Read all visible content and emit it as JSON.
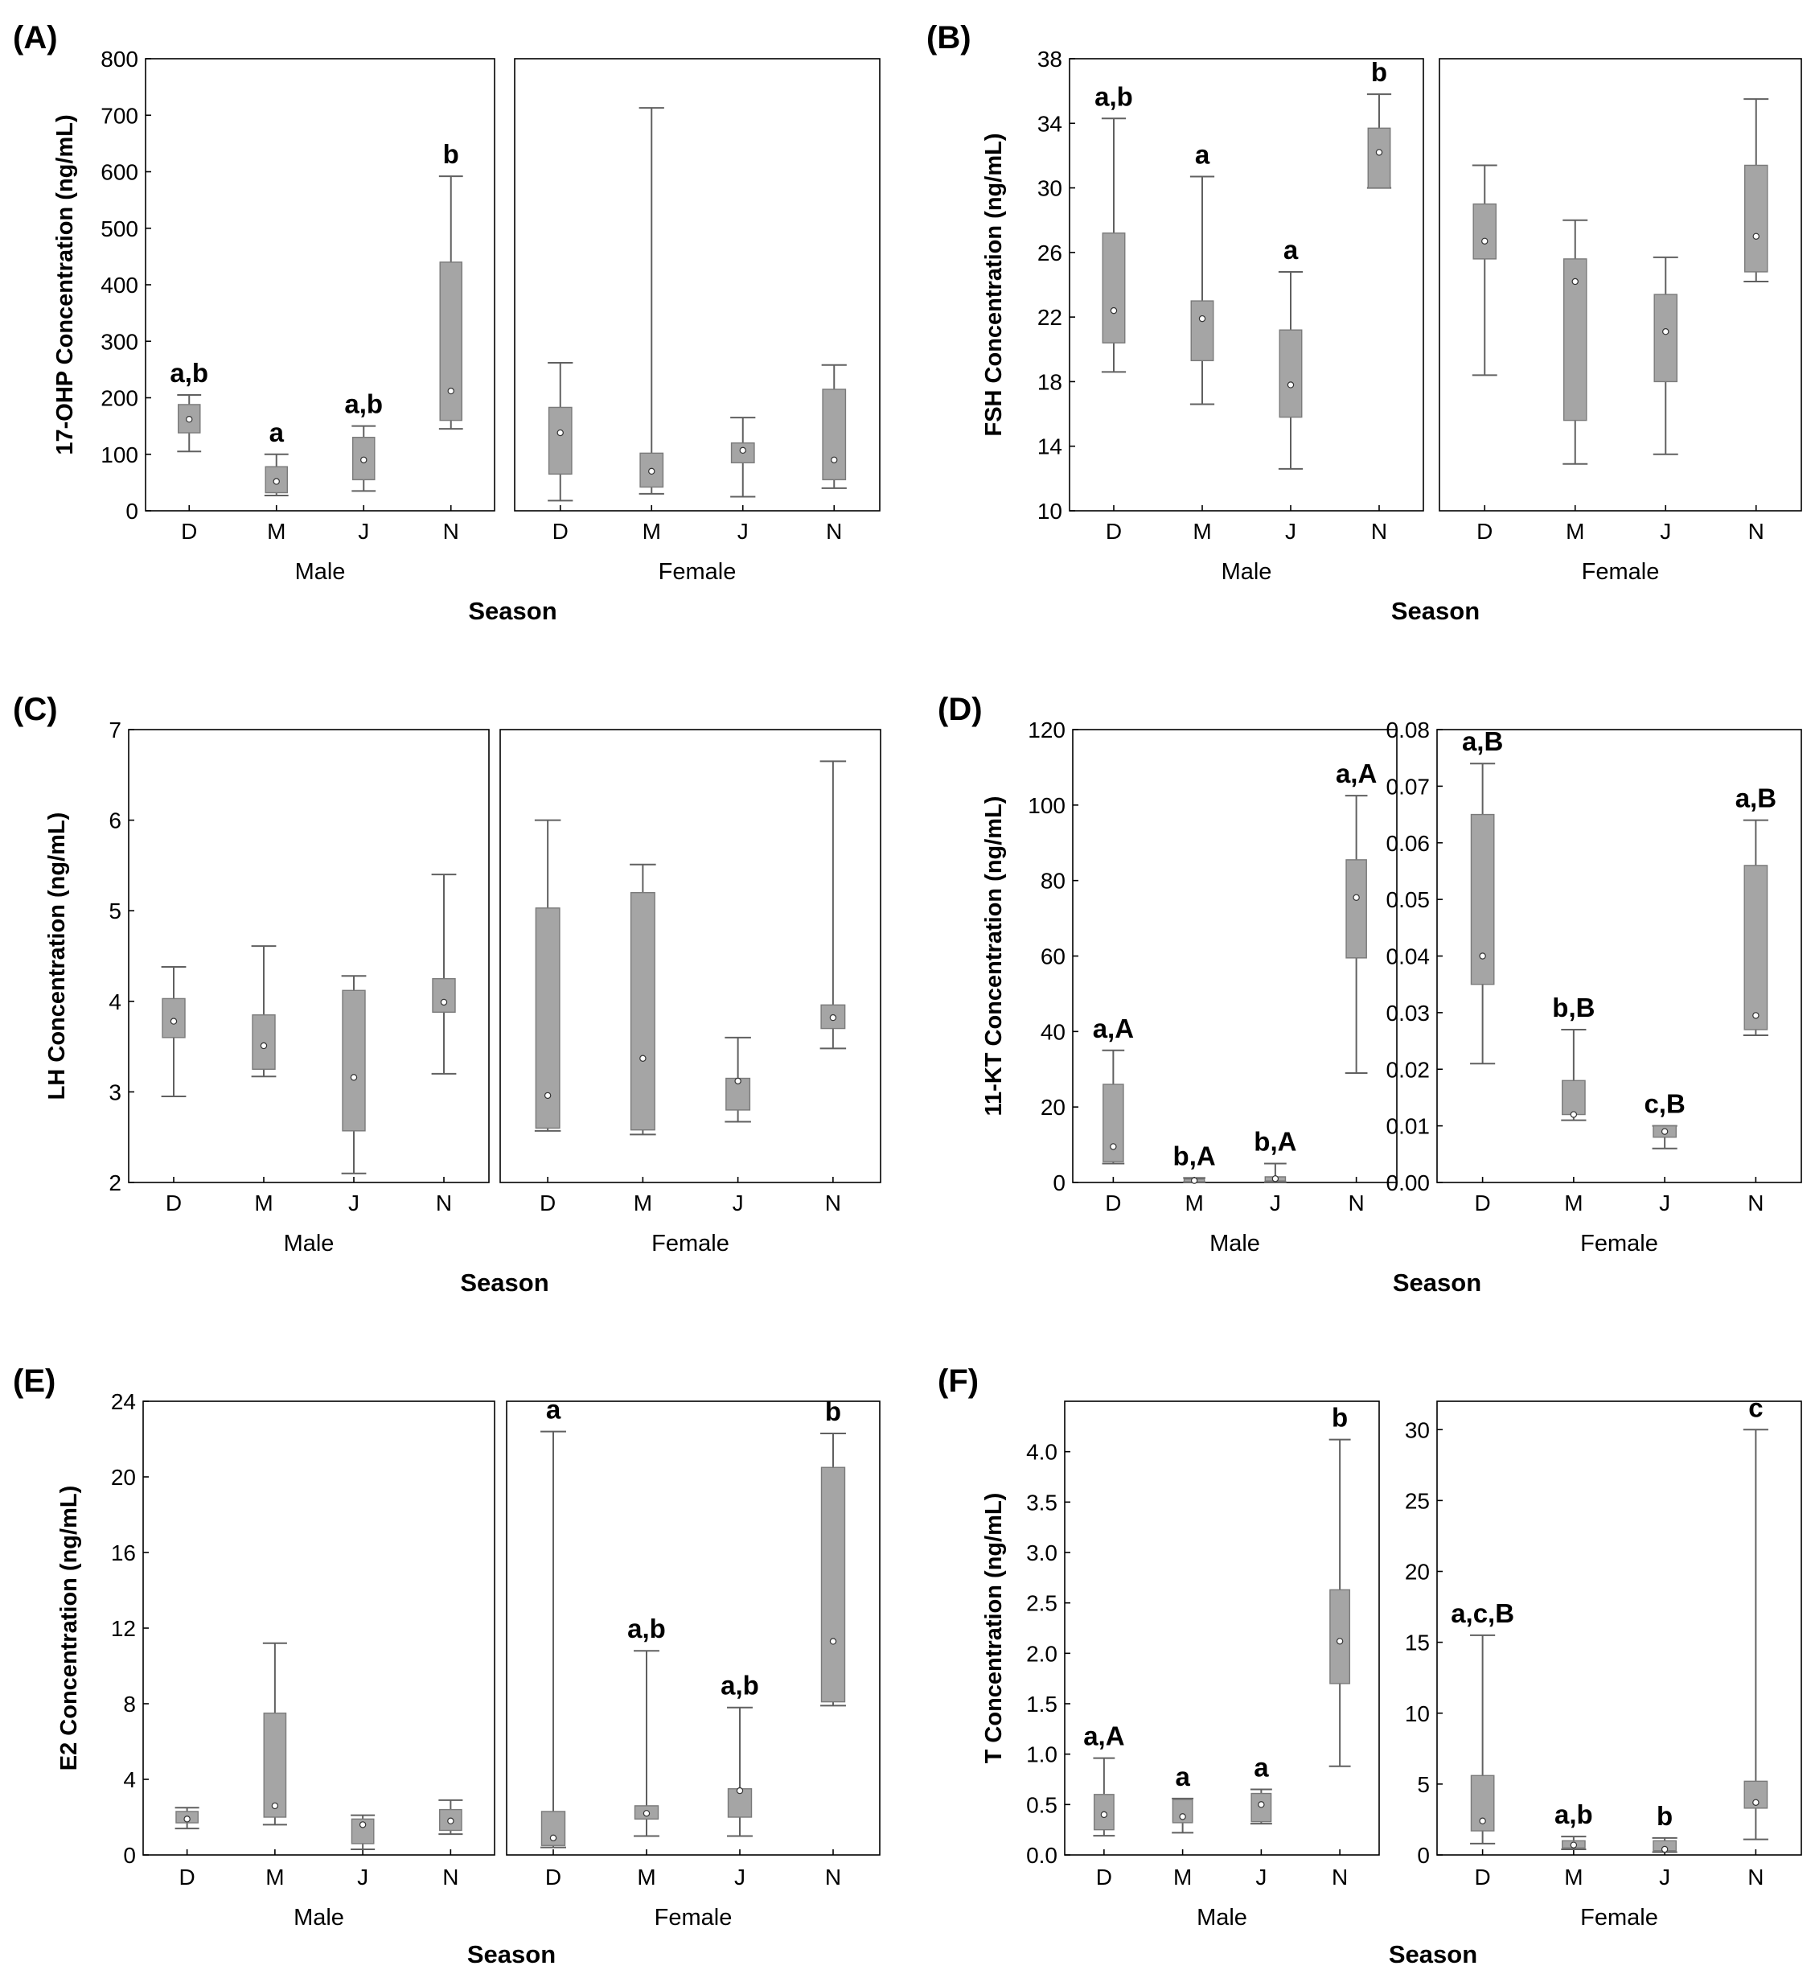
{
  "chart_data": [
    {
      "id": "A",
      "panel_label": "(A)",
      "type": "box",
      "ylabel": "17-OHP Concentration (ng/mL)",
      "xlabel": "Season",
      "categories": [
        "D",
        "M",
        "J",
        "N"
      ],
      "groups": [
        {
          "name": "Male",
          "ylim": [
            0,
            800
          ],
          "yticks": [
            "0",
            "100",
            "200",
            "300",
            "400",
            "500",
            "600",
            "700",
            "800"
          ],
          "tick_side": "left",
          "boxes": [
            {
              "category": "D",
              "min": 105,
              "q1": 138,
              "median": 162,
              "q3": 188,
              "max": 205,
              "label": "a,b"
            },
            {
              "category": "M",
              "min": 27,
              "q1": 32,
              "median": 52,
              "q3": 78,
              "max": 100,
              "label": "a"
            },
            {
              "category": "J",
              "min": 35,
              "q1": 55,
              "median": 90,
              "q3": 130,
              "max": 150,
              "label": "a,b"
            },
            {
              "category": "N",
              "min": 145,
              "q1": 160,
              "median": 212,
              "q3": 440,
              "max": 592,
              "label": "b"
            }
          ]
        },
        {
          "name": "Female",
          "ylim": [
            0,
            800
          ],
          "yticks": [],
          "tick_side": "none",
          "boxes": [
            {
              "category": "D",
              "min": 18,
              "q1": 65,
              "median": 138,
              "q3": 183,
              "max": 262,
              "label": ""
            },
            {
              "category": "M",
              "min": 30,
              "q1": 42,
              "median": 70,
              "q3": 102,
              "max": 713,
              "label": ""
            },
            {
              "category": "J",
              "min": 25,
              "q1": 85,
              "median": 107,
              "q3": 120,
              "max": 165,
              "label": ""
            },
            {
              "category": "N",
              "min": 40,
              "q1": 55,
              "median": 90,
              "q3": 215,
              "max": 258,
              "label": ""
            }
          ]
        }
      ]
    },
    {
      "id": "B",
      "panel_label": "(B)",
      "type": "box",
      "ylabel": "FSH Concentration (ng/mL)",
      "xlabel": "Season",
      "categories": [
        "D",
        "M",
        "J",
        "N"
      ],
      "groups": [
        {
          "name": "Male",
          "ylim": [
            10,
            38
          ],
          "yticks": [
            "10",
            "14",
            "18",
            "22",
            "26",
            "30",
            "34",
            "38"
          ],
          "tick_side": "left",
          "boxes": [
            {
              "category": "D",
              "min": 18.6,
              "q1": 20.4,
              "median": 22.4,
              "q3": 27.2,
              "max": 34.3,
              "label": "a,b"
            },
            {
              "category": "M",
              "min": 16.6,
              "q1": 19.3,
              "median": 21.9,
              "q3": 23.0,
              "max": 30.7,
              "label": "a"
            },
            {
              "category": "J",
              "min": 12.6,
              "q1": 15.8,
              "median": 17.8,
              "q3": 21.2,
              "max": 24.8,
              "label": "a"
            },
            {
              "category": "N",
              "min": 30.0,
              "q1": 30.0,
              "median": 32.2,
              "q3": 33.7,
              "max": 35.8,
              "label": "b"
            }
          ]
        },
        {
          "name": "Female",
          "ylim": [
            10,
            38
          ],
          "yticks": [],
          "tick_side": "none",
          "boxes": [
            {
              "category": "D",
              "min": 18.4,
              "q1": 25.6,
              "median": 26.7,
              "q3": 29.0,
              "max": 31.4,
              "label": ""
            },
            {
              "category": "M",
              "min": 12.9,
              "q1": 15.6,
              "median": 24.2,
              "q3": 25.6,
              "max": 28.0,
              "label": ""
            },
            {
              "category": "J",
              "min": 13.5,
              "q1": 18.0,
              "median": 21.1,
              "q3": 23.4,
              "max": 25.7,
              "label": ""
            },
            {
              "category": "N",
              "min": 24.2,
              "q1": 24.8,
              "median": 27.0,
              "q3": 31.4,
              "max": 35.5,
              "label": ""
            }
          ]
        }
      ]
    },
    {
      "id": "C",
      "panel_label": "(C)",
      "type": "box",
      "ylabel": "LH Concentration (ng/mL)",
      "xlabel": "Season",
      "categories": [
        "D",
        "M",
        "J",
        "N"
      ],
      "groups": [
        {
          "name": "Male",
          "ylim": [
            2,
            7
          ],
          "yticks": [
            "2",
            "3",
            "4",
            "5",
            "6",
            "7"
          ],
          "tick_side": "left",
          "boxes": [
            {
              "category": "D",
              "min": 2.95,
              "q1": 3.6,
              "median": 3.78,
              "q3": 4.03,
              "max": 4.38,
              "label": ""
            },
            {
              "category": "M",
              "min": 3.17,
              "q1": 3.25,
              "median": 3.51,
              "q3": 3.85,
              "max": 4.61,
              "label": ""
            },
            {
              "category": "J",
              "min": 2.1,
              "q1": 2.57,
              "median": 3.16,
              "q3": 4.12,
              "max": 4.28,
              "label": ""
            },
            {
              "category": "N",
              "min": 3.2,
              "q1": 3.88,
              "median": 3.99,
              "q3": 4.25,
              "max": 5.4,
              "label": ""
            }
          ]
        },
        {
          "name": "Female",
          "ylim": [
            2,
            7
          ],
          "yticks": [],
          "tick_side": "none",
          "boxes": [
            {
              "category": "D",
              "min": 2.57,
              "q1": 2.6,
              "median": 2.96,
              "q3": 5.03,
              "max": 6.0,
              "label": ""
            },
            {
              "category": "M",
              "min": 2.53,
              "q1": 2.58,
              "median": 3.37,
              "q3": 5.2,
              "max": 5.51,
              "label": ""
            },
            {
              "category": "J",
              "min": 2.67,
              "q1": 2.8,
              "median": 3.12,
              "q3": 3.15,
              "max": 3.6,
              "label": ""
            },
            {
              "category": "N",
              "min": 3.48,
              "q1": 3.7,
              "median": 3.82,
              "q3": 3.96,
              "max": 6.65,
              "label": ""
            }
          ]
        }
      ]
    },
    {
      "id": "D",
      "panel_label": "(D)",
      "type": "box",
      "ylabel": "11-KT Concentration (ng/mL)",
      "xlabel": "Season",
      "categories": [
        "D",
        "M",
        "J",
        "N"
      ],
      "groups": [
        {
          "name": "Male",
          "ylim": [
            0,
            120
          ],
          "yticks": [
            "0",
            "20",
            "40",
            "60",
            "80",
            "100",
            "120"
          ],
          "tick_side": "left",
          "boxes": [
            {
              "category": "D",
              "min": 5,
              "q1": 5.5,
              "median": 9.5,
              "q3": 26,
              "max": 35,
              "label": "a,A"
            },
            {
              "category": "M",
              "min": 0.1,
              "q1": 0.2,
              "median": 0.5,
              "q3": 0.9,
              "max": 1.2,
              "label": "b,A"
            },
            {
              "category": "J",
              "min": 0.1,
              "q1": 0.4,
              "median": 1.0,
              "q3": 1.5,
              "max": 5,
              "label": "b,A"
            },
            {
              "category": "N",
              "min": 29,
              "q1": 59.5,
              "median": 75.5,
              "q3": 85.5,
              "max": 102.5,
              "label": "a,A"
            }
          ]
        },
        {
          "name": "Female",
          "ylim": [
            0,
            0.08
          ],
          "yticks": [
            "0.00",
            "0.01",
            "0.02",
            "0.03",
            "0.04",
            "0.05",
            "0.06",
            "0.07",
            "0.08"
          ],
          "tick_side": "left",
          "boxes": [
            {
              "category": "D",
              "min": 0.021,
              "q1": 0.035,
              "median": 0.04,
              "q3": 0.065,
              "max": 0.074,
              "label": "a,B"
            },
            {
              "category": "M",
              "min": 0.011,
              "q1": 0.012,
              "median": 0.012,
              "q3": 0.018,
              "max": 0.027,
              "label": "b,B"
            },
            {
              "category": "J",
              "min": 0.006,
              "q1": 0.008,
              "median": 0.009,
              "q3": 0.01,
              "max": 0.01,
              "label": "c,B"
            },
            {
              "category": "N",
              "min": 0.026,
              "q1": 0.027,
              "median": 0.0295,
              "q3": 0.056,
              "max": 0.064,
              "label": "a,B"
            }
          ]
        }
      ]
    },
    {
      "id": "E",
      "panel_label": "(E)",
      "type": "box",
      "ylabel": "E2 Concentration (ng/mL)",
      "xlabel": "Season",
      "categories": [
        "D",
        "M",
        "J",
        "N"
      ],
      "groups": [
        {
          "name": "Male",
          "ylim": [
            0,
            24
          ],
          "yticks": [
            "0",
            "4",
            "8",
            "12",
            "16",
            "20",
            "24"
          ],
          "tick_side": "left",
          "boxes": [
            {
              "category": "D",
              "min": 1.4,
              "q1": 1.7,
              "median": 1.9,
              "q3": 2.3,
              "max": 2.5,
              "label": ""
            },
            {
              "category": "M",
              "min": 1.6,
              "q1": 2.0,
              "median": 2.6,
              "q3": 7.5,
              "max": 11.2,
              "label": ""
            },
            {
              "category": "J",
              "min": 0.3,
              "q1": 0.6,
              "median": 1.6,
              "q3": 1.9,
              "max": 2.1,
              "label": ""
            },
            {
              "category": "N",
              "min": 1.1,
              "q1": 1.3,
              "median": 1.8,
              "q3": 2.4,
              "max": 2.9,
              "label": ""
            }
          ]
        },
        {
          "name": "Female",
          "ylim": [
            0,
            24
          ],
          "yticks": [],
          "tick_side": "none",
          "boxes": [
            {
              "category": "D",
              "min": 0.4,
              "q1": 0.5,
              "median": 0.9,
              "q3": 2.3,
              "max": 22.4,
              "label": "a"
            },
            {
              "category": "M",
              "min": 1.0,
              "q1": 1.9,
              "median": 2.2,
              "q3": 2.6,
              "max": 10.8,
              "label": "a,b"
            },
            {
              "category": "J",
              "min": 1.0,
              "q1": 2.0,
              "median": 3.4,
              "q3": 3.5,
              "max": 7.8,
              "label": "a,b"
            },
            {
              "category": "N",
              "min": 7.9,
              "q1": 8.1,
              "median": 11.3,
              "q3": 20.5,
              "max": 22.3,
              "label": "b"
            }
          ]
        }
      ]
    },
    {
      "id": "F",
      "panel_label": "(F)",
      "type": "box",
      "ylabel": "T Concentration (ng/mL)",
      "xlabel": "Season",
      "categories": [
        "D",
        "M",
        "J",
        "N"
      ],
      "groups": [
        {
          "name": "Male",
          "ylim": [
            0,
            4.5
          ],
          "yticks": [
            "0.0",
            "0.5",
            "1.0",
            "1.5",
            "2.0",
            "2.5",
            "3.0",
            "3.5",
            "4.0"
          ],
          "tick_side": "left",
          "boxes": [
            {
              "category": "D",
              "min": 0.19,
              "q1": 0.25,
              "median": 0.4,
              "q3": 0.6,
              "max": 0.96,
              "label": "a,A"
            },
            {
              "category": "M",
              "min": 0.22,
              "q1": 0.32,
              "median": 0.38,
              "q3": 0.55,
              "max": 0.56,
              "label": "a"
            },
            {
              "category": "J",
              "min": 0.31,
              "q1": 0.33,
              "median": 0.5,
              "q3": 0.61,
              "max": 0.65,
              "label": "a"
            },
            {
              "category": "N",
              "min": 0.88,
              "q1": 1.7,
              "median": 2.12,
              "q3": 2.63,
              "max": 4.12,
              "label": "b"
            }
          ]
        },
        {
          "name": "Female",
          "ylim": [
            0,
            32
          ],
          "yticks": [
            "0",
            "5",
            "10",
            "15",
            "20",
            "25",
            "30"
          ],
          "tick_side": "left",
          "boxes": [
            {
              "category": "D",
              "min": 0.8,
              "q1": 1.7,
              "median": 2.4,
              "q3": 5.6,
              "max": 15.5,
              "label": "a,c,B"
            },
            {
              "category": "M",
              "min": 0.4,
              "q1": 0.5,
              "median": 0.7,
              "q3": 1.0,
              "max": 1.3,
              "label": "a,b"
            },
            {
              "category": "J",
              "min": 0.2,
              "q1": 0.3,
              "median": 0.4,
              "q3": 1.0,
              "max": 1.2,
              "label": "b"
            },
            {
              "category": "N",
              "min": 1.1,
              "q1": 3.3,
              "median": 3.7,
              "q3": 5.2,
              "max": 30.0,
              "label": "c"
            }
          ]
        }
      ]
    }
  ]
}
